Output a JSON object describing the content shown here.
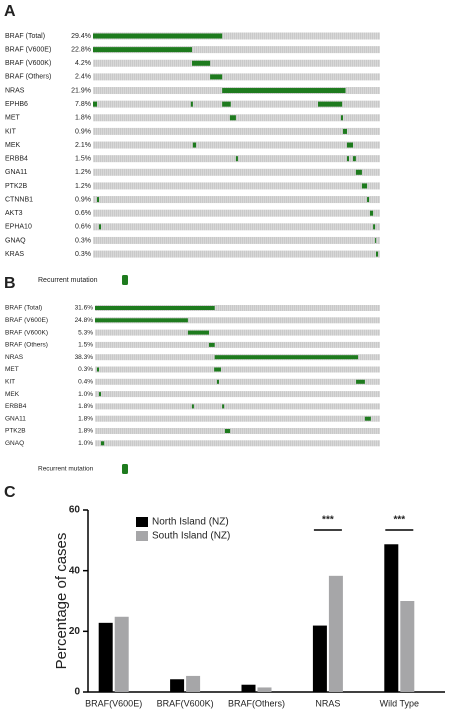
{
  "chart_data": [
    {
      "type": "oncoprint",
      "label": "A",
      "xlim": [
        0,
        100
      ],
      "color": "#1e7b1e",
      "legend": "Recurrent mutation",
      "categories": [
        "BRAF (Total)",
        "BRAF (V600E)",
        "BRAF (V600K)",
        "BRAF (Others)",
        "NRAS",
        "EPHB6",
        "MET",
        "KIT",
        "MEK",
        "ERBB4",
        "GNA11",
        "PTK2B",
        "CTNNB1",
        "AKT3",
        "EPHA10",
        "GNAQ",
        "KRAS"
      ],
      "values": [
        29.4,
        22.8,
        4.2,
        2.4,
        21.9,
        7.8,
        1.8,
        0.9,
        2.1,
        1.5,
        1.2,
        1.2,
        0.9,
        0.6,
        0.6,
        0.3,
        0.3
      ],
      "value_labels": [
        "29.4%",
        "22.8%",
        "4.2%",
        "2.4%",
        "21.9%",
        "7.8%",
        "1.8%",
        "0.9%",
        "2.1%",
        "1.5%",
        "1.2%",
        "1.2%",
        "0.9%",
        "0.6%",
        "0.6%",
        "0.3%",
        "0.3%"
      ],
      "segments": [
        [
          [
            0,
            45
          ]
        ],
        [
          [
            0,
            34.5
          ]
        ],
        [
          [
            34.5,
            40.8
          ]
        ],
        [
          [
            40.8,
            45
          ]
        ],
        [
          [
            45,
            88
          ]
        ],
        [
          [
            0,
            1.4
          ],
          [
            34.1,
            34.8
          ],
          [
            45,
            48
          ],
          [
            78.4,
            86.8
          ]
        ],
        [
          [
            47.7,
            49.8
          ],
          [
            86.4,
            87.1
          ]
        ],
        [
          [
            87.1,
            88.5
          ]
        ],
        [
          [
            34.8,
            35.9
          ],
          [
            88.5,
            90.6
          ]
        ],
        [
          [
            49.8,
            50.5
          ],
          [
            88.5,
            89.2
          ],
          [
            90.6,
            91.6
          ]
        ],
        [
          [
            91.6,
            93.7
          ]
        ],
        [
          [
            93.7,
            95.5
          ]
        ],
        [
          [
            1.4,
            2.1
          ],
          [
            95.5,
            96.2
          ]
        ],
        [
          [
            96.5,
            97.6
          ]
        ],
        [
          [
            2.1,
            2.8
          ],
          [
            97.6,
            98.3
          ]
        ],
        [
          [
            98.3,
            98.6
          ]
        ],
        [
          [
            98.6,
            99.3
          ]
        ]
      ]
    },
    {
      "type": "oncoprint",
      "label": "B",
      "xlim": [
        0,
        100
      ],
      "color": "#1e7b1e",
      "legend": "Recurrent mutation",
      "categories": [
        "BRAF (Total)",
        "BRAF (V600E)",
        "BRAF (V600K)",
        "BRAF (Others)",
        "NRAS",
        "MET",
        "KIT",
        "MEK",
        "ERBB4",
        "GNA11",
        "PTK2B",
        "GNAQ"
      ],
      "values": [
        31.6,
        24.8,
        5.3,
        1.5,
        38.3,
        0.3,
        0.4,
        1.0,
        1.8,
        1.8,
        1.8,
        1.0
      ],
      "value_labels": [
        "31.6%",
        "24.8%",
        "5.3%",
        "1.5%",
        "38.3%",
        "0.3%",
        "0.4%",
        "1.0%",
        "1.8%",
        "1.8%",
        "1.8%",
        "1.0%"
      ],
      "segments": [
        [
          [
            0,
            42
          ]
        ],
        [
          [
            0,
            32.6
          ]
        ],
        [
          [
            32.6,
            40
          ]
        ],
        [
          [
            40,
            42
          ]
        ],
        [
          [
            42,
            92.3
          ]
        ],
        [
          [
            0.7,
            1.4
          ],
          [
            41.8,
            44.2
          ]
        ],
        [
          [
            42.8,
            43.5
          ],
          [
            91.6,
            94.7
          ]
        ],
        [
          [
            1.4,
            2.1
          ]
        ],
        [
          [
            34,
            34.7
          ],
          [
            44.6,
            45.3
          ]
        ],
        [
          [
            94.7,
            96.8
          ]
        ],
        [
          [
            45.6,
            47.4
          ]
        ],
        [
          [
            2.1,
            3.2
          ]
        ]
      ]
    },
    {
      "type": "bar",
      "label": "C",
      "y_label": "Percentage of cases",
      "ylim": [
        0,
        60
      ],
      "yticks": [
        0,
        20,
        40,
        60
      ],
      "categories": [
        "BRAF(V600E)",
        "BRAF(V600K)",
        "BRAF(Others)",
        "NRAS",
        "Wild Type"
      ],
      "series": [
        {
          "name": "North Island (NZ)",
          "color": "#000000",
          "values": [
            22.8,
            4.2,
            2.4,
            21.9,
            48.7
          ]
        },
        {
          "name": "South Island (NZ)",
          "color": "#a6a6a8",
          "values": [
            24.8,
            5.3,
            1.5,
            38.3,
            30
          ]
        }
      ],
      "annotations": [
        {
          "text": "***",
          "category": 3
        },
        {
          "text": "***",
          "category": 4
        }
      ]
    }
  ]
}
